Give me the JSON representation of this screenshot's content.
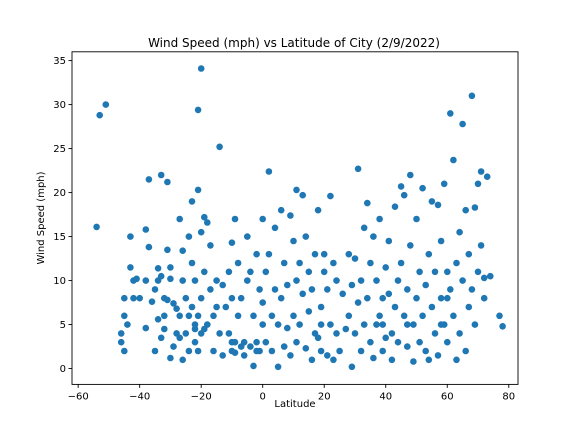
{
  "chart_data": {
    "type": "scatter",
    "title": "Wind Speed (mph) vs Latitude of City (2/9/2022)",
    "xlabel": "Latitude",
    "ylabel": "Wind Speed (mph)",
    "xlim": [
      -62,
      83
    ],
    "ylim": [
      -1.8,
      36
    ],
    "xticks": [
      -60,
      -40,
      -20,
      0,
      20,
      40,
      60,
      80
    ],
    "yticks": [
      0,
      5,
      10,
      15,
      20,
      25,
      30,
      35
    ],
    "grid": false,
    "legend": "none",
    "marker_color": "#1f77b4",
    "points": [
      [
        -54,
        16.1
      ],
      [
        -53,
        28.8
      ],
      [
        -51,
        30
      ],
      [
        -46,
        4
      ],
      [
        -46,
        3
      ],
      [
        -45,
        8
      ],
      [
        -45,
        6
      ],
      [
        -45,
        2
      ],
      [
        -44,
        5
      ],
      [
        -43,
        15
      ],
      [
        -43,
        11.5
      ],
      [
        -42,
        8
      ],
      [
        -42,
        10
      ],
      [
        -41,
        10.2
      ],
      [
        -40,
        8
      ],
      [
        -38,
        4.6
      ],
      [
        -38,
        15.8
      ],
      [
        -38,
        10
      ],
      [
        -37,
        21.5
      ],
      [
        -37,
        13.8
      ],
      [
        -36,
        7.6
      ],
      [
        -35,
        9
      ],
      [
        -35,
        2
      ],
      [
        -34,
        11.4
      ],
      [
        -34,
        5.6
      ],
      [
        -34,
        10
      ],
      [
        -33,
        22
      ],
      [
        -33,
        10.5
      ],
      [
        -33,
        3.5
      ],
      [
        -32,
        4.5
      ],
      [
        -32,
        8
      ],
      [
        -32,
        6
      ],
      [
        -31,
        13.5
      ],
      [
        -31,
        21.2
      ],
      [
        -31,
        7.8
      ],
      [
        -30,
        11.5
      ],
      [
        -30,
        1.2
      ],
      [
        -30,
        10.2
      ],
      [
        -29,
        7.4
      ],
      [
        -29,
        2.5
      ],
      [
        -28,
        6.8
      ],
      [
        -28,
        4
      ],
      [
        -27,
        17
      ],
      [
        -27,
        6
      ],
      [
        -27,
        3.5
      ],
      [
        -26,
        10
      ],
      [
        -26,
        13.4
      ],
      [
        -26,
        1
      ],
      [
        -25,
        4
      ],
      [
        -25,
        8
      ],
      [
        -24,
        6
      ],
      [
        -24,
        2
      ],
      [
        -24,
        15
      ],
      [
        -23,
        7
      ],
      [
        -23,
        12
      ],
      [
        -23,
        19
      ],
      [
        -22,
        4.5
      ],
      [
        -22,
        3
      ],
      [
        -22,
        10
      ],
      [
        -21,
        29.4
      ],
      [
        -21,
        20.3
      ],
      [
        -21,
        6
      ],
      [
        -21,
        2
      ],
      [
        -20,
        34.1
      ],
      [
        -20,
        8
      ],
      [
        -20,
        4
      ],
      [
        -20,
        15.5
      ],
      [
        -19,
        17.2
      ],
      [
        -19,
        4.5
      ],
      [
        -19,
        11
      ],
      [
        -18,
        16.6
      ],
      [
        -18,
        5
      ],
      [
        -17,
        14
      ],
      [
        -17,
        9
      ],
      [
        -16,
        6
      ],
      [
        -16,
        2
      ],
      [
        -15,
        7
      ],
      [
        -15,
        10
      ],
      [
        -14,
        25.2
      ],
      [
        -14,
        4
      ],
      [
        -13,
        9.5
      ],
      [
        -13,
        1.5
      ],
      [
        -12,
        7
      ],
      [
        -11,
        11
      ],
      [
        -11,
        4
      ],
      [
        -10,
        2
      ],
      [
        -10,
        14.3
      ],
      [
        -10,
        8
      ],
      [
        -9,
        1.8
      ],
      [
        -9,
        17
      ],
      [
        -9,
        3
      ],
      [
        -8,
        6
      ],
      [
        -8,
        12
      ],
      [
        -7,
        2.5
      ],
      [
        -7,
        8
      ],
      [
        -6,
        1.5
      ],
      [
        -6,
        3
      ],
      [
        -5,
        15
      ],
      [
        -5,
        10
      ],
      [
        -4,
        2.5
      ],
      [
        -4,
        11
      ],
      [
        -3,
        0.3
      ],
      [
        -3,
        6
      ],
      [
        -2,
        3
      ],
      [
        -2,
        13
      ],
      [
        -1,
        9
      ],
      [
        -1,
        2
      ],
      [
        0,
        17
      ],
      [
        0,
        5
      ],
      [
        0,
        7.5
      ],
      [
        1,
        3
      ],
      [
        1,
        11
      ],
      [
        2,
        22.4
      ],
      [
        2,
        13
      ],
      [
        3,
        6
      ],
      [
        3,
        2
      ],
      [
        4,
        9
      ],
      [
        4,
        16
      ],
      [
        5,
        0.2
      ],
      [
        5,
        5
      ],
      [
        6,
        8
      ],
      [
        6,
        18
      ],
      [
        7,
        2.5
      ],
      [
        7,
        12
      ],
      [
        8,
        4.6
      ],
      [
        8,
        9.5
      ],
      [
        9,
        17.4
      ],
      [
        9,
        1.5
      ],
      [
        10,
        6
      ],
      [
        10,
        14.5
      ],
      [
        11,
        3
      ],
      [
        11,
        10
      ],
      [
        11,
        20.3
      ],
      [
        12,
        5
      ],
      [
        12,
        12
      ],
      [
        13,
        8.5
      ],
      [
        13,
        19.7
      ],
      [
        14,
        2.3
      ],
      [
        14,
        15
      ],
      [
        15,
        6.5
      ],
      [
        15,
        11
      ],
      [
        16,
        1
      ],
      [
        16,
        9
      ],
      [
        17,
        4
      ],
      [
        17,
        13
      ],
      [
        18,
        18
      ],
      [
        18,
        3.5
      ],
      [
        19,
        7
      ],
      [
        19,
        2
      ],
      [
        20,
        11
      ],
      [
        20,
        13
      ],
      [
        21,
        9
      ],
      [
        21,
        1.5
      ],
      [
        22,
        19.6
      ],
      [
        22,
        5
      ],
      [
        23,
        1
      ],
      [
        23,
        12
      ],
      [
        24,
        4
      ],
      [
        24,
        10
      ],
      [
        25,
        2
      ],
      [
        26,
        8.5
      ],
      [
        27,
        4.5
      ],
      [
        28,
        13
      ],
      [
        28,
        6
      ],
      [
        29,
        9.5
      ],
      [
        29,
        0.2
      ],
      [
        30,
        12.5
      ],
      [
        30,
        4
      ],
      [
        31,
        7.5
      ],
      [
        31,
        22.7
      ],
      [
        32,
        2
      ],
      [
        32,
        10
      ],
      [
        33,
        5
      ],
      [
        33,
        16
      ],
      [
        34,
        18.8
      ],
      [
        34,
        8
      ],
      [
        35,
        3
      ],
      [
        35,
        12
      ],
      [
        36,
        15
      ],
      [
        36,
        1.2
      ],
      [
        37,
        10
      ],
      [
        37,
        5
      ],
      [
        38,
        17
      ],
      [
        38,
        6
      ],
      [
        39,
        8
      ],
      [
        39,
        2
      ],
      [
        40,
        11.5
      ],
      [
        40,
        3.5
      ],
      [
        41,
        14.5
      ],
      [
        41,
        8.5
      ],
      [
        42,
        4
      ],
      [
        42,
        1
      ],
      [
        43,
        18.4
      ],
      [
        43,
        7
      ],
      [
        44,
        10
      ],
      [
        44,
        3
      ],
      [
        45,
        20.7
      ],
      [
        45,
        12
      ],
      [
        46,
        19.7
      ],
      [
        46,
        6
      ],
      [
        47,
        2.5
      ],
      [
        47,
        9
      ],
      [
        48,
        22
      ],
      [
        48,
        14
      ],
      [
        49,
        5
      ],
      [
        49,
        0.8
      ],
      [
        50,
        17
      ],
      [
        50,
        8
      ],
      [
        51,
        11
      ],
      [
        51,
        3
      ],
      [
        52,
        20.5
      ],
      [
        52,
        6
      ],
      [
        53,
        2
      ],
      [
        53,
        9.5
      ],
      [
        54,
        13
      ],
      [
        54,
        1
      ],
      [
        55,
        19
      ],
      [
        55,
        7
      ],
      [
        56,
        4
      ],
      [
        56,
        11
      ],
      [
        57,
        18.6
      ],
      [
        57,
        1.5
      ],
      [
        58,
        8
      ],
      [
        58,
        14.5
      ],
      [
        59,
        21
      ],
      [
        59,
        5
      ],
      [
        60,
        3
      ],
      [
        60,
        11
      ],
      [
        61,
        29
      ],
      [
        61,
        9
      ],
      [
        62,
        23.7
      ],
      [
        62,
        6
      ],
      [
        63,
        1
      ],
      [
        63,
        12
      ],
      [
        64,
        15.5
      ],
      [
        64,
        4
      ],
      [
        65,
        27.8
      ],
      [
        65,
        10
      ],
      [
        66,
        18
      ],
      [
        66,
        2
      ],
      [
        67,
        7
      ],
      [
        67,
        13
      ],
      [
        68,
        31
      ],
      [
        68,
        9
      ],
      [
        69,
        18.3
      ],
      [
        69,
        5
      ],
      [
        70,
        21
      ],
      [
        70,
        11
      ],
      [
        71,
        22.4
      ],
      [
        71,
        14
      ],
      [
        72,
        8
      ],
      [
        72,
        10.3
      ],
      [
        73,
        21.8
      ],
      [
        74,
        10.5
      ],
      [
        77,
        6
      ],
      [
        78,
        4.8
      ],
      [
        60,
        8
      ],
      [
        58,
        5
      ],
      [
        47,
        5
      ],
      [
        39,
        5
      ],
      [
        19,
        5
      ],
      [
        -2,
        2
      ],
      [
        -10,
        3
      ],
      [
        -22,
        5
      ]
    ]
  }
}
